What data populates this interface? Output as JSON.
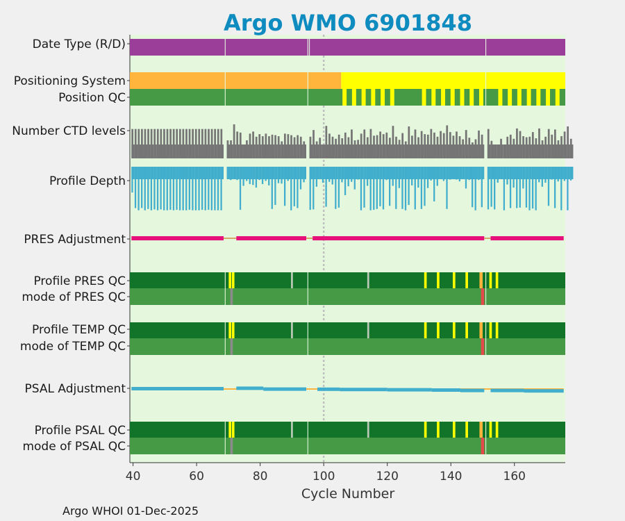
{
  "chart_data": {
    "type": "bar",
    "title": "Argo WMO 6901848",
    "xlabel": "Cycle Number",
    "xlim": [
      39,
      176
    ],
    "xticks": [
      40,
      60,
      80,
      100,
      120,
      140,
      160
    ],
    "footer": "Argo WHOI 01-Dec-2025",
    "marker_cycle": 100,
    "colors": {
      "background": "#e5f8de",
      "title": "#0e8bbf",
      "purple": "#9a3e99",
      "orange": "#ffb43c",
      "yellow": "#ffff00",
      "green": "#479a45",
      "darkgreen": "#127428",
      "gray": "#757575",
      "blue": "#42aecd",
      "pink": "#e6117a",
      "red": "#e24a4a",
      "tan": "#d4a968",
      "gap": "#e5f8de",
      "marker": "#bfbfbf"
    },
    "rows": [
      {
        "label": "Date Type (R/D)"
      },
      {
        "label": "Positioning System"
      },
      {
        "label": "Position QC"
      },
      {
        "label": "Number CTD levels"
      },
      {
        "label": "Profile Depth"
      },
      {
        "label": "PRES Adjustment"
      },
      {
        "label": "Profile PRES QC"
      },
      {
        "label": "mode of PRES QC"
      },
      {
        "label": "Profile TEMP QC"
      },
      {
        "label": "mode of TEMP QC"
      },
      {
        "label": "PSAL Adjustment"
      },
      {
        "label": "Profile PSAL QC"
      },
      {
        "label": "mode of PSAL QC"
      }
    ],
    "missing_cycles": [
      69,
      95,
      151
    ],
    "date_type": {
      "color": "purple",
      "extra_gaps": [
        95.5
      ]
    },
    "positioning_system": [
      {
        "from": 39,
        "to": 105.5,
        "value": "orange"
      },
      {
        "from": 105.5,
        "to": 176,
        "value": "yellow"
      }
    ],
    "position_qc_yellow_cycles": [
      106,
      109,
      112,
      115,
      118,
      121,
      131,
      134,
      137,
      140,
      143,
      146,
      149,
      155,
      158,
      161,
      164,
      167,
      170,
      173
    ],
    "pres_adjustment": [
      {
        "from": 39.5,
        "to": 68.5,
        "value": "pink"
      },
      {
        "from": 68.5,
        "to": 72.5,
        "value": "tan"
      },
      {
        "from": 72.5,
        "to": 94.5,
        "value": "pink"
      },
      {
        "from": 94.5,
        "to": 96.5,
        "value": "tan"
      },
      {
        "from": 96.5,
        "to": 150.5,
        "value": "pink"
      },
      {
        "from": 150.5,
        "to": 152.5,
        "value": "tan"
      },
      {
        "from": 152.5,
        "to": 175.5,
        "value": "pink"
      }
    ],
    "psal_adjustment": [
      {
        "from": 39.5,
        "to": 68.5,
        "offset": 0
      },
      {
        "from": 72.5,
        "to": 81,
        "offset": -0.3
      },
      {
        "from": 81,
        "to": 94.5,
        "offset": 0.3
      },
      {
        "from": 98,
        "to": 105,
        "offset": 0.4
      },
      {
        "from": 105,
        "to": 120,
        "offset": 0.6
      },
      {
        "from": 120,
        "to": 134,
        "offset": 0.8
      },
      {
        "from": 134,
        "to": 143,
        "offset": 1.0
      },
      {
        "from": 143,
        "to": 150.5,
        "offset": 1.3
      },
      {
        "from": 152.5,
        "to": 163,
        "offset": 1.3
      },
      {
        "from": 163,
        "to": 175.5,
        "offset": 1.6
      }
    ],
    "profile_qc": {
      "yellow_cycles": [
        70.5,
        71.5,
        132,
        136,
        141,
        145
      ],
      "gray_cycles": [
        90,
        114
      ],
      "amber_cycles": [
        149.5
      ],
      "yellow_after": [
        152.5,
        154.5
      ]
    },
    "mode_qc": {
      "gray_cycles": [
        71
      ],
      "red_cycles": [
        150
      ]
    },
    "ctd_levels": [
      57,
      57,
      57,
      57,
      57,
      57,
      57,
      57,
      57,
      57,
      57,
      57,
      57,
      57,
      57,
      57,
      57,
      57,
      57,
      57,
      57,
      57,
      57,
      57,
      57,
      57,
      57,
      57,
      57,
      57,
      35,
      35,
      66,
      52,
      50,
      29,
      35,
      48,
      52,
      42,
      47,
      43,
      48,
      43,
      46,
      45,
      43,
      33,
      48,
      47,
      45,
      41,
      45,
      42,
      33,
      36,
      42,
      55,
      33,
      40,
      22,
      63,
      48,
      42,
      38,
      46,
      39,
      50,
      41,
      56,
      35,
      36,
      48,
      56,
      41,
      57,
      44,
      45,
      52,
      47,
      50,
      40,
      63,
      42,
      36,
      49,
      33,
      62,
      44,
      56,
      41,
      53,
      47,
      46,
      57,
      50,
      42,
      53,
      49,
      64,
      51,
      44,
      52,
      43,
      37,
      55,
      40,
      31,
      37,
      54,
      46,
      53,
      57,
      34,
      29,
      30,
      38,
      23,
      42,
      46,
      38,
      58,
      53,
      43,
      41,
      42,
      51,
      39,
      58,
      35,
      42,
      57,
      46,
      56,
      35,
      43,
      52,
      62,
      38
    ],
    "profile_depth": [
      58,
      93,
      98,
      93,
      98,
      95,
      98,
      96,
      98,
      96,
      98,
      98,
      97,
      98,
      97,
      98,
      98,
      98,
      97,
      98,
      98,
      98,
      97,
      98,
      97,
      98,
      98,
      98,
      98,
      98,
      24,
      30,
      28,
      30,
      97,
      43,
      32,
      39,
      41,
      47,
      30,
      39,
      32,
      42,
      95,
      86,
      37,
      38,
      88,
      32,
      98,
      89,
      93,
      51,
      35,
      32,
      97,
      96,
      45,
      28,
      36,
      90,
      34,
      40,
      95,
      92,
      35,
      64,
      44,
      34,
      51,
      29,
      98,
      92,
      43,
      98,
      97,
      95,
      89,
      96,
      30,
      88,
      43,
      95,
      48,
      95,
      98,
      86,
      42,
      96,
      47,
      95,
      88,
      48,
      31,
      78,
      43,
      26,
      32,
      95,
      29,
      25,
      29,
      33,
      28,
      49,
      30,
      91,
      98,
      30,
      91,
      98,
      96,
      90,
      96,
      36,
      28,
      98,
      40,
      93,
      47,
      93,
      92,
      49,
      92,
      98,
      94,
      98,
      35,
      45,
      36,
      88,
      29,
      93,
      33,
      98,
      32,
      98,
      31
    ]
  }
}
